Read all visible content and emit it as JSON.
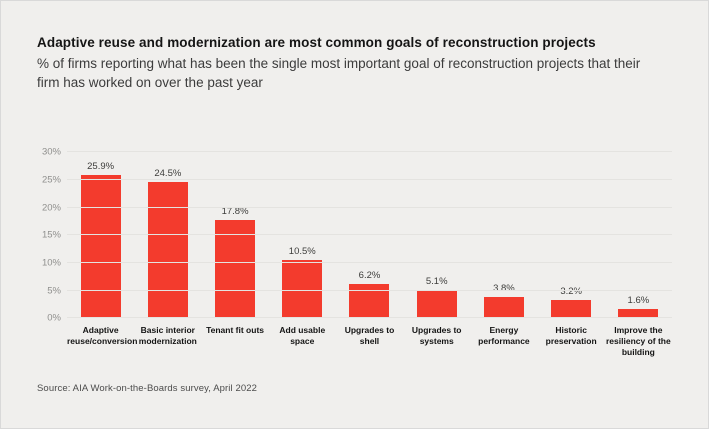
{
  "page": {
    "title": "Adaptive reuse and modernization are most common goals of reconstruction projects",
    "subtitle": "% of firms reporting what has been the single most important goal of reconstruction projects that their firm has worked on over the past year",
    "source": "Source: AIA Work-on-the-Boards survey, April 2022"
  },
  "colors": {
    "background": "#f0efed",
    "bar": "#f33b2d",
    "grid": "#e4e3e0",
    "tick_text": "#8f8f8d",
    "value_text": "#3d3d3b",
    "category_text": "#141414"
  },
  "chart_data": {
    "type": "bar",
    "title": "Adaptive reuse and modernization are most common goals of reconstruction projects",
    "xlabel": "",
    "ylabel": "",
    "categories": [
      "Adaptive reuse/conversion",
      "Basic interior modernization",
      "Tenant fit outs",
      "Add usable space",
      "Upgrades to shell",
      "Upgrades to systems",
      "Energy performance",
      "Historic preservation",
      "Improve the resiliency of the building"
    ],
    "category_display_lines": [
      [
        "Adaptive",
        "reuse/conversion"
      ],
      [
        "Basic interior",
        "modernization"
      ],
      [
        "Tenant fit outs"
      ],
      [
        "Add usable space"
      ],
      [
        "Upgrades to shell"
      ],
      [
        "Upgrades to",
        "systems"
      ],
      [
        "Energy",
        "performance"
      ],
      [
        "Historic",
        "preservation"
      ],
      [
        "Improve the",
        "resiliency of the",
        "building"
      ]
    ],
    "values": [
      25.9,
      24.5,
      17.8,
      10.5,
      6.2,
      5.1,
      3.8,
      3.2,
      1.6
    ],
    "value_labels": [
      "25.9%",
      "24.5%",
      "17.8%",
      "10.5%",
      "6.2%",
      "5.1%",
      "3.8%",
      "3.2%",
      "1.6%"
    ],
    "ylim": [
      0,
      30
    ],
    "ytick_step": 5,
    "ytick_labels": [
      "0%",
      "5%",
      "10%",
      "15%",
      "20%",
      "25%",
      "30%"
    ],
    "grid": true,
    "legend": false,
    "bar_color": "#f33b2d"
  }
}
